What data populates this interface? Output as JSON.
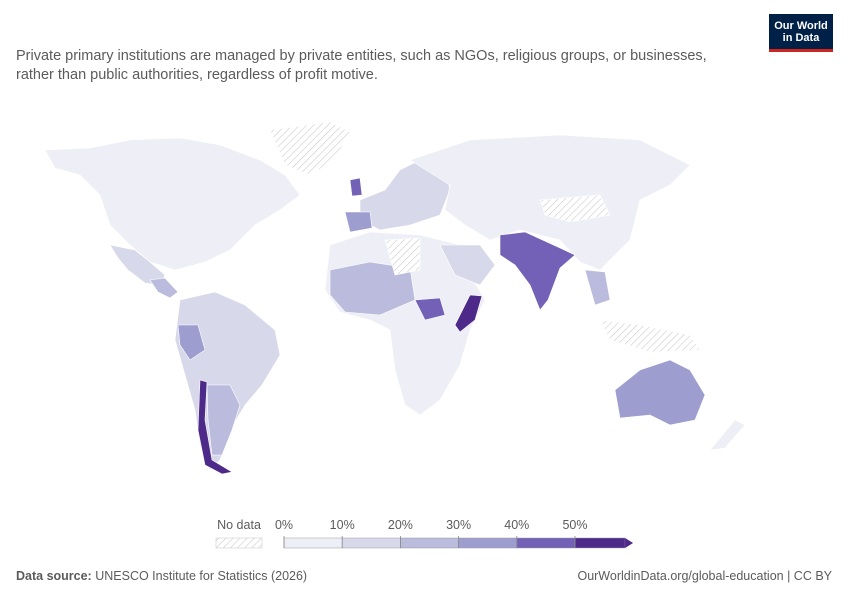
{
  "header": {
    "subtitle": "Private primary institutions are managed by private entities, such as NGOs, religious groups, or businesses, rather than public authorities, regardless of profit motive.",
    "logo": "Our World in Data"
  },
  "legend": {
    "no_data": "No data",
    "ticks": [
      {
        "value": 0,
        "label": "0%"
      },
      {
        "value": 10,
        "label": "10%"
      },
      {
        "value": 20,
        "label": "20%"
      },
      {
        "value": 30,
        "label": "30%"
      },
      {
        "value": 40,
        "label": "40%"
      },
      {
        "value": 50,
        "label": "50%"
      }
    ],
    "colors": [
      "#eeeef6",
      "#d8d8eb",
      "#bbbbdd",
      "#9d9dcf",
      "#7261b6",
      "#4d2a8a"
    ]
  },
  "footer": {
    "source_label": "Data source:",
    "source": "UNESCO Institute for Statistics (2026)",
    "url": "OurWorldinData.org/global-education | CC BY"
  }
}
